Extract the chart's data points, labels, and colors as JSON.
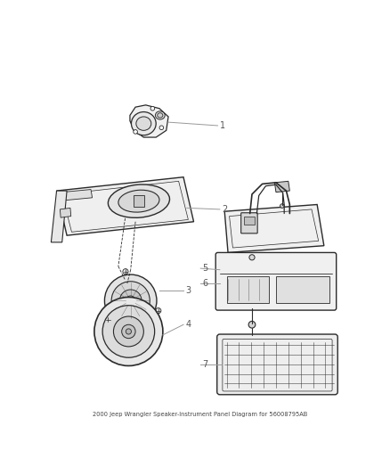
{
  "title": "2000 Jeep Wrangler Speaker-Instrument Panel Diagram for 56008795AB",
  "bg_color": "#ffffff",
  "line_color": "#2a2a2a",
  "label_color": "#555555",
  "label_line_color": "#999999",
  "fig_width": 4.38,
  "fig_height": 5.33,
  "dpi": 100
}
